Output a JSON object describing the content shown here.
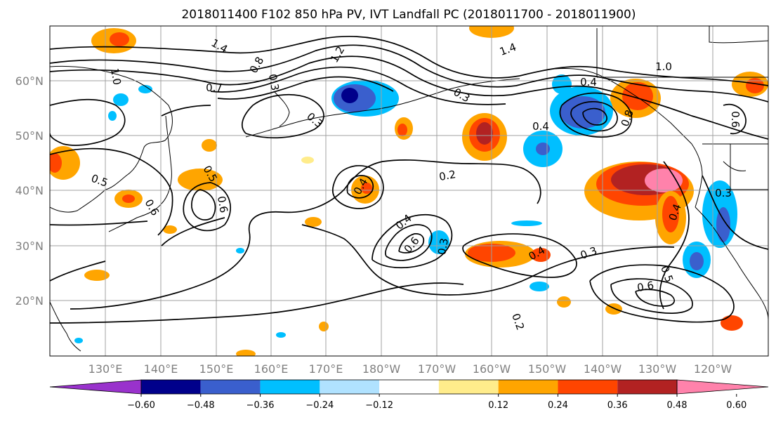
{
  "title": "2018011400 F102 850 hPa PV, IVT Landfall PC (2018011700 - 2018011900)",
  "map": {
    "lat_ticks": [
      "60°N",
      "50°N",
      "40°N",
      "30°N",
      "20°N"
    ],
    "lon_ticks": [
      "130°E",
      "140°E",
      "150°E",
      "160°E",
      "170°E",
      "180°W",
      "170°W",
      "160°W",
      "150°W",
      "140°W",
      "130°W",
      "120°W"
    ],
    "contour_labels": [
      "1.4",
      "1.0",
      "1.2",
      "0.7",
      "0.3",
      "0.3",
      "0.3",
      "0.8",
      "1.4",
      "0.4",
      "0.4",
      "0.8",
      "1.0",
      "0.5",
      "0.6",
      "0.5",
      "0.4",
      "0.2",
      "0.6",
      "0.4",
      "0.3",
      "0.3",
      "0.6",
      "0.5",
      "0.4",
      "0.2",
      "0.6",
      "0.6",
      "0.4",
      "0.3"
    ],
    "fill_colors": {
      "purple": "#9932cc",
      "navy": "#00008b",
      "royal": "#3a5fcd",
      "sky": "#00bfff",
      "light_blue": "#b0e2ff",
      "white": "#ffffff",
      "yellow": "#ffec8b",
      "orange": "#ffa500",
      "orange_red": "#ff4500",
      "brick": "#b22222",
      "pink": "#ff82ab"
    }
  },
  "colorbar": {
    "tick_labels": [
      "−0.60",
      "−0.48",
      "−0.36",
      "−0.24",
      "−0.12",
      "0.12",
      "0.24",
      "0.36",
      "0.48",
      "0.60"
    ],
    "colors": [
      "#9932cc",
      "#00008b",
      "#3a5fcd",
      "#00bfff",
      "#b0e2ff",
      "#ffffff",
      "#ffec8b",
      "#ffa500",
      "#ff4500",
      "#b22222",
      "#ff82ab"
    ]
  }
}
